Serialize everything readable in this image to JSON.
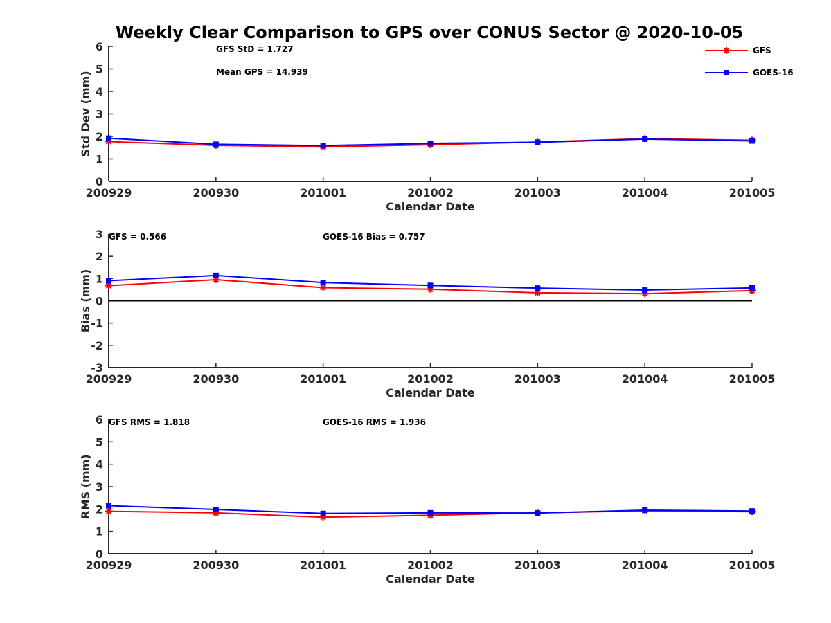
{
  "title": "Weekly Clear Comparison to GPS over CONUS Sector @ 2020-10-05",
  "legend": {
    "placement": "top-right",
    "entries": [
      {
        "label": "GFS",
        "color": "#ff0000",
        "marker": "asterisk"
      },
      {
        "label": "GOES-16",
        "color": "#0000ff",
        "marker": "square"
      }
    ]
  },
  "chart_data": [
    {
      "type": "line",
      "xlabel": "Calendar Date",
      "ylabel": "Std Dev (mm)",
      "categories": [
        "200929",
        "200930",
        "201001",
        "201002",
        "201003",
        "201004",
        "201005"
      ],
      "ylim": [
        0,
        6
      ],
      "yticks": [
        "0",
        "1",
        "2",
        "3",
        "4",
        "5",
        "6"
      ],
      "annotations": [
        "GFS StD = 1.727",
        "Mean GPS = 14.939"
      ],
      "series": [
        {
          "name": "GFS",
          "color": "#ff0000",
          "marker": "asterisk",
          "values": [
            1.77,
            1.6,
            1.53,
            1.63,
            1.75,
            1.9,
            1.83
          ]
        },
        {
          "name": "GOES-16",
          "color": "#0000ff",
          "marker": "square",
          "values": [
            1.92,
            1.65,
            1.59,
            1.69,
            1.74,
            1.88,
            1.8
          ]
        }
      ],
      "zero_line": false
    },
    {
      "type": "line",
      "xlabel": "Calendar Date",
      "ylabel": "Bias (mm)",
      "categories": [
        "200929",
        "200930",
        "201001",
        "201002",
        "201003",
        "201004",
        "201005"
      ],
      "ylim": [
        -3,
        3
      ],
      "yticks": [
        "-3",
        "-2",
        "-1",
        "0",
        "1",
        "2",
        "3"
      ],
      "annotations": [
        "GFS = 0.566",
        "GOES-16 Bias  = 0.757"
      ],
      "series": [
        {
          "name": "GFS",
          "color": "#ff0000",
          "marker": "asterisk",
          "values": [
            0.68,
            0.95,
            0.59,
            0.52,
            0.36,
            0.32,
            0.46
          ]
        },
        {
          "name": "GOES-16",
          "color": "#0000ff",
          "marker": "square",
          "values": [
            0.9,
            1.14,
            0.82,
            0.69,
            0.57,
            0.48,
            0.58
          ]
        }
      ],
      "zero_line": true
    },
    {
      "type": "line",
      "xlabel": "Calendar Date",
      "ylabel": "RMS (mm)",
      "categories": [
        "200929",
        "200930",
        "201001",
        "201002",
        "201003",
        "201004",
        "201005"
      ],
      "ylim": [
        0,
        6
      ],
      "yticks": [
        "0",
        "1",
        "2",
        "3",
        "4",
        "5",
        "6"
      ],
      "annotations": [
        "GFS RMS = 1.818",
        "GOES-16 RMS = 1.936"
      ],
      "series": [
        {
          "name": "GFS",
          "color": "#ff0000",
          "marker": "asterisk",
          "values": [
            1.9,
            1.83,
            1.63,
            1.72,
            1.83,
            1.92,
            1.88
          ]
        },
        {
          "name": "GOES-16",
          "color": "#0000ff",
          "marker": "square",
          "values": [
            2.15,
            1.98,
            1.8,
            1.83,
            1.82,
            1.95,
            1.91
          ]
        }
      ],
      "zero_line": false
    }
  ]
}
